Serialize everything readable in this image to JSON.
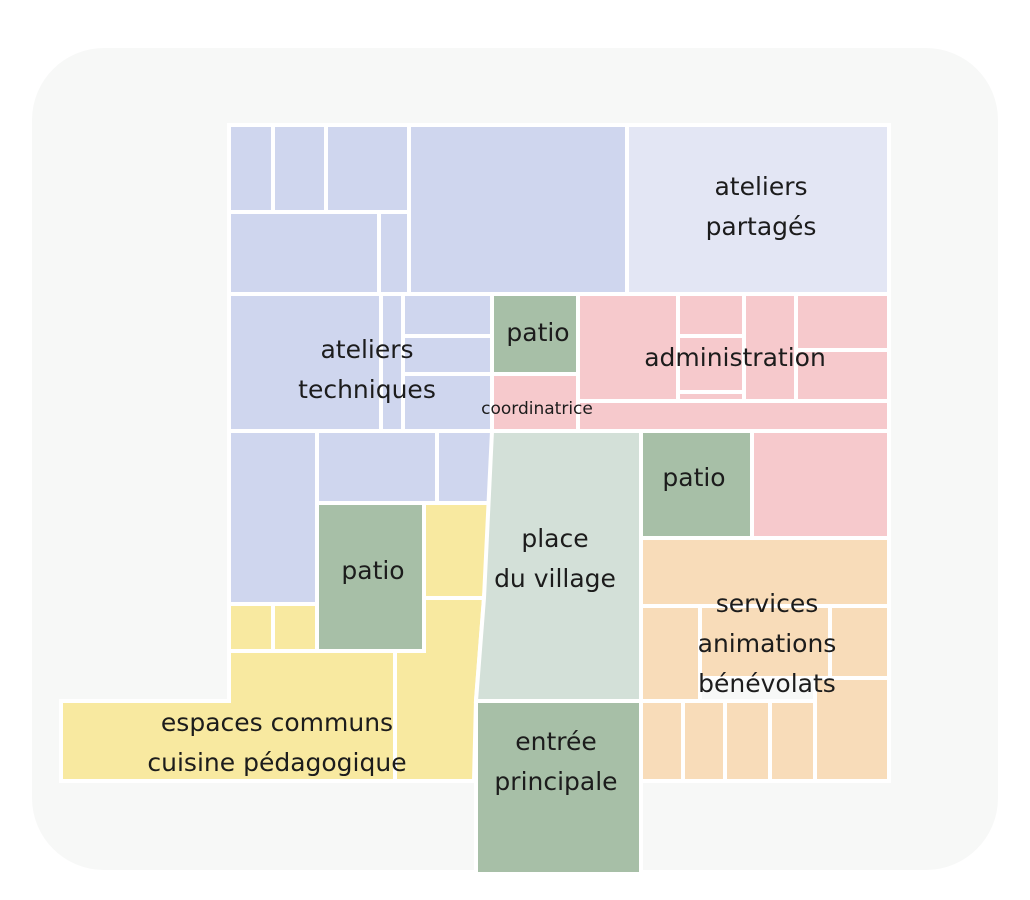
{
  "colors": {
    "card": "#f7f8f7",
    "blue": "#cfd6ee",
    "light_blue": "#e3e6f4",
    "pink": "#f6c9cc",
    "patio_green": "#a7bfa7",
    "place_green": "#d3e0d8",
    "yellow": "#f8e9a0",
    "orange": "#f8dcb9",
    "separator": "#ffffff"
  },
  "labels": {
    "ateliers_partages": [
      "ateliers",
      "partagés"
    ],
    "ateliers_techniques": [
      "ateliers",
      "techniques"
    ],
    "patio_top": "patio",
    "administration": "administration",
    "coordinatrice": "coordinatrice",
    "patio_right": "patio",
    "patio_left": "patio",
    "place_du_village": [
      "place",
      "du village"
    ],
    "services": [
      "services",
      "animations",
      "bénévolats"
    ],
    "espaces_communs": [
      "espaces communs",
      "cuisine pédagogique"
    ],
    "entree_principale": [
      "entrée",
      "principale"
    ]
  }
}
